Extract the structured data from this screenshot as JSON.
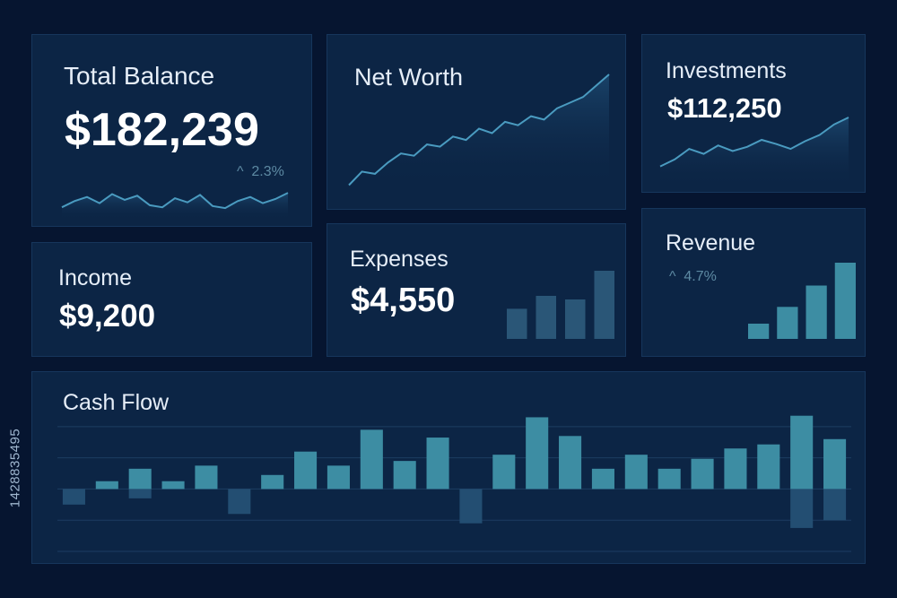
{
  "cards": {
    "total_balance": {
      "title": "Total Balance",
      "value": "$182,239",
      "change": "2.3%",
      "change_arrow": "^",
      "sparkline": [
        0.3,
        0.45,
        0.55,
        0.4,
        0.62,
        0.48,
        0.58,
        0.35,
        0.3,
        0.52,
        0.42,
        0.6,
        0.33,
        0.28,
        0.45,
        0.55,
        0.4,
        0.5,
        0.65
      ]
    },
    "net_worth": {
      "title": "Net Worth",
      "trend": [
        0.02,
        0.14,
        0.12,
        0.22,
        0.3,
        0.28,
        0.38,
        0.36,
        0.45,
        0.42,
        0.52,
        0.48,
        0.58,
        0.55,
        0.63,
        0.6,
        0.7,
        0.75,
        0.8,
        0.9,
        1.0
      ]
    },
    "investments": {
      "title": "Investments",
      "value": "$112,250",
      "trend": [
        0.3,
        0.4,
        0.55,
        0.48,
        0.6,
        0.52,
        0.58,
        0.68,
        0.62,
        0.55,
        0.66,
        0.75,
        0.9,
        1.0
      ]
    },
    "income": {
      "title": "Income",
      "value": "$9,200"
    },
    "expenses": {
      "title": "Expenses",
      "value": "$4,550",
      "bars": [
        0.42,
        0.6,
        0.55,
        0.95
      ]
    },
    "revenue": {
      "title": "Revenue",
      "change": "4.7%",
      "change_arrow": "^",
      "bars": [
        0.2,
        0.42,
        0.7,
        1.0
      ]
    },
    "cash_flow": {
      "title": "Cash Flow"
    }
  },
  "chart_data": {
    "type": "bar",
    "title": "Cash Flow",
    "values": [
      -0.5,
      0.25,
      0.65,
      0.25,
      0.75,
      -0.8,
      0.45,
      1.2,
      0.75,
      1.9,
      0.9,
      1.65,
      -1.1,
      1.1,
      2.3,
      1.7,
      0.65,
      1.1,
      0.65,
      0.97,
      1.3,
      1.43,
      2.35,
      1.6
    ],
    "secondary_values": [
      0,
      0,
      -0.3,
      0,
      0,
      0,
      0,
      0,
      0,
      0,
      0,
      0,
      0,
      0,
      0,
      0,
      0,
      0,
      0,
      0,
      0,
      0,
      -1.25,
      -1.0
    ],
    "ylim": [
      -2,
      2.6
    ],
    "grid": true
  },
  "image_id_text": "1428835495",
  "colors": {
    "background": "#061530",
    "card": "#0c2545",
    "bar": "#3d8da3",
    "line": "#4a9bc0",
    "text": "#e6eef8"
  }
}
